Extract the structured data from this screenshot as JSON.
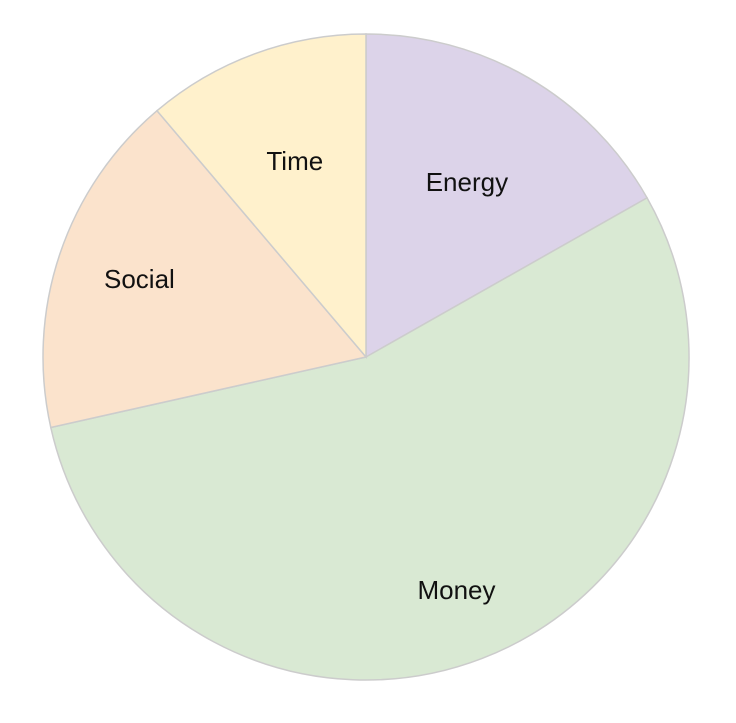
{
  "chart_data": {
    "type": "pie",
    "title": "",
    "start": "12 o'clock",
    "direction": "clockwise",
    "slices": [
      {
        "label": "Energy",
        "value": 16.8,
        "color": "#dcd3e9"
      },
      {
        "label": "Money",
        "value": 54.7,
        "color": "#d9e9d3"
      },
      {
        "label": "Social",
        "value": 17.3,
        "color": "#fbe3cc"
      },
      {
        "label": "Time",
        "value": 11.2,
        "color": "#fff1cc"
      }
    ],
    "legend": "none",
    "border_color": "#cccccc"
  }
}
